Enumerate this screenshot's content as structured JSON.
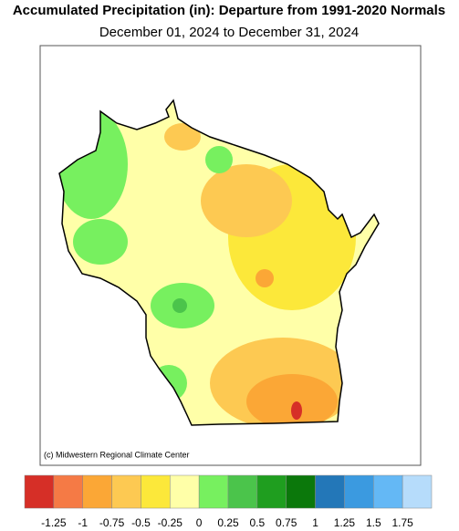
{
  "header": {
    "title": "Accumulated Precipitation (in): Departure from 1991-2020 Normals",
    "subtitle": "December 01, 2024 to December 31, 2024"
  },
  "map": {
    "credit": "(c) Midwestern Regional Climate Center"
  },
  "legend": {
    "colors": [
      "#d62f27",
      "#f57a45",
      "#fba736",
      "#fdc952",
      "#fce83a",
      "#ffffa8",
      "#77f05f",
      "#4bc44b",
      "#1f9e1f",
      "#0b780b",
      "#2377b8",
      "#3b9ae0",
      "#64b8f5",
      "#b6dcfb"
    ],
    "ticks": [
      -1.25,
      -1,
      -0.75,
      -0.5,
      -0.25,
      0,
      0.25,
      0.5,
      0.75,
      1,
      1.25,
      1.5,
      1.75
    ]
  }
}
